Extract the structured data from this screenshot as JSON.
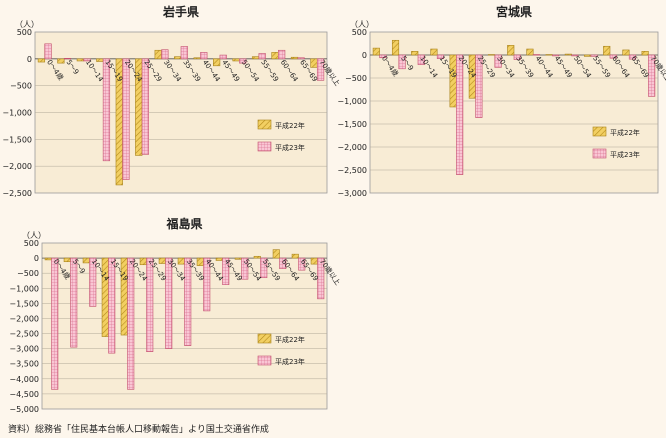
{
  "source_note": "資料）総務省「住民基本台帳人口移動報告」より国土交通省作成",
  "legend": [
    "平成22年",
    "平成23年"
  ],
  "colors": {
    "h22_fill": "#f2cf62",
    "h22_stroke": "#a8831c",
    "h23_fill": "#f6b8c8",
    "h23_stroke": "#c4506f",
    "plot_bg": "#f8ecd5"
  },
  "chart_data": [
    {
      "type": "bar",
      "title": "岩手県",
      "unit": "（人）",
      "ylim": [
        -2500,
        500
      ],
      "ytick_step": 500,
      "categories": [
        "0～4歳",
        "5～9",
        "10～14",
        "15～19",
        "20～24",
        "25～29",
        "30～34",
        "35～39",
        "40～44",
        "45～49",
        "50～54",
        "55～59",
        "60～64",
        "65～69",
        "70歳以上"
      ],
      "series": [
        {
          "name": "平成22年",
          "values": [
            -60,
            -80,
            -40,
            -50,
            -2350,
            -1800,
            160,
            40,
            20,
            -130,
            -40,
            40,
            120,
            30,
            -160
          ]
        },
        {
          "name": "平成23年",
          "values": [
            280,
            10,
            -40,
            -1900,
            -2250,
            -1780,
            170,
            230,
            120,
            70,
            -80,
            100,
            160,
            20,
            -400
          ]
        }
      ]
    },
    {
      "type": "bar",
      "title": "宮城県",
      "unit": "（人）",
      "ylim": [
        -3000,
        500
      ],
      "ytick_step": 500,
      "categories": [
        "0～4歳",
        "5～9",
        "10～14",
        "15～19",
        "20～24",
        "25～29",
        "30～34",
        "35～39",
        "40～44",
        "45～49",
        "50～54",
        "55～59",
        "60～64",
        "65～69",
        "70歳以上"
      ],
      "series": [
        {
          "name": "平成22年",
          "values": [
            150,
            320,
            80,
            130,
            -1130,
            -940,
            10,
            210,
            130,
            10,
            20,
            -30,
            190,
            110,
            80
          ]
        },
        {
          "name": "平成23年",
          "values": [
            -60,
            -300,
            -210,
            -80,
            -2600,
            -1360,
            -270,
            -100,
            10,
            -20,
            -20,
            -30,
            -70,
            -90,
            -900
          ]
        }
      ]
    },
    {
      "type": "bar",
      "title": "福島県",
      "unit": "（人）",
      "ylim": [
        -5000,
        500
      ],
      "ytick_step": 500,
      "categories": [
        "0～4歳",
        "5～9",
        "10～14",
        "15～19",
        "20～24",
        "25～29",
        "30～34",
        "35～39",
        "40～44",
        "45～49",
        "50～54",
        "55～59",
        "60～64",
        "65～69",
        "70歳以上"
      ],
      "series": [
        {
          "name": "平成22年",
          "values": [
            -60,
            -120,
            -160,
            -2600,
            -2550,
            -220,
            -180,
            -200,
            -250,
            -80,
            -40,
            60,
            280,
            130,
            -200
          ]
        },
        {
          "name": "平成23年",
          "values": [
            -4350,
            -2950,
            -1600,
            -3150,
            -4350,
            -3100,
            -3000,
            -2900,
            -1750,
            -880,
            -700,
            -650,
            -350,
            -400,
            -1350
          ]
        }
      ]
    }
  ]
}
